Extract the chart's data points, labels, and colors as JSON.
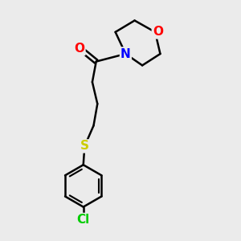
{
  "bg_color": "#ebebeb",
  "bond_color": "#000000",
  "O_color": "#ff0000",
  "N_color": "#0000ff",
  "S_color": "#cccc00",
  "Cl_color": "#00cc00",
  "line_width": 1.8,
  "font_size": 11,
  "figsize": [
    3.0,
    3.0
  ],
  "dpi": 100,
  "xlim": [
    0.5,
    7.5
  ],
  "ylim": [
    0.3,
    9.7
  ]
}
